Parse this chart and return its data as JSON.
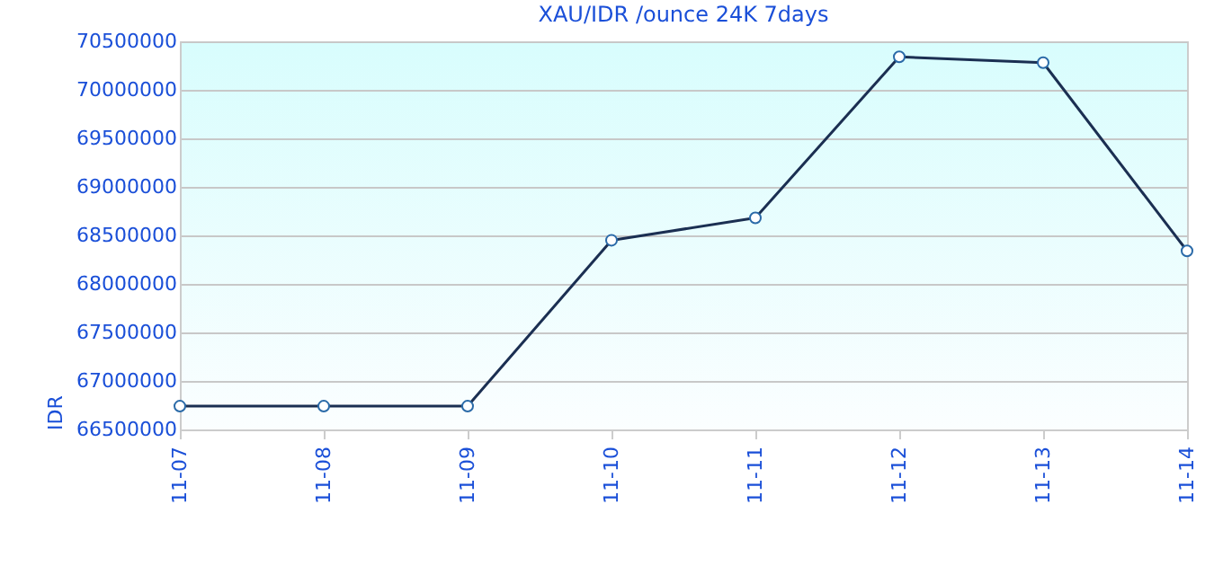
{
  "chart_data": {
    "type": "line",
    "title": "XAU/IDR /ounce 24K 7days",
    "ylabel": "IDR",
    "categories": [
      "11-07",
      "11-08",
      "11-09",
      "11-10",
      "11-11",
      "11-12",
      "11-13",
      "11-14"
    ],
    "series": [
      {
        "color": "#1b2f52",
        "values": [
          66740000,
          66740000,
          66740000,
          68450000,
          68680000,
          70340000,
          70280000,
          68340000
        ]
      }
    ],
    "ylim": [
      66500000,
      70500000
    ],
    "yticks": [
      66500000,
      67000000,
      67500000,
      68000000,
      68500000,
      69000000,
      69500000,
      70000000,
      70500000
    ],
    "grid": "y",
    "marker": "circle",
    "line_style": "solid"
  }
}
